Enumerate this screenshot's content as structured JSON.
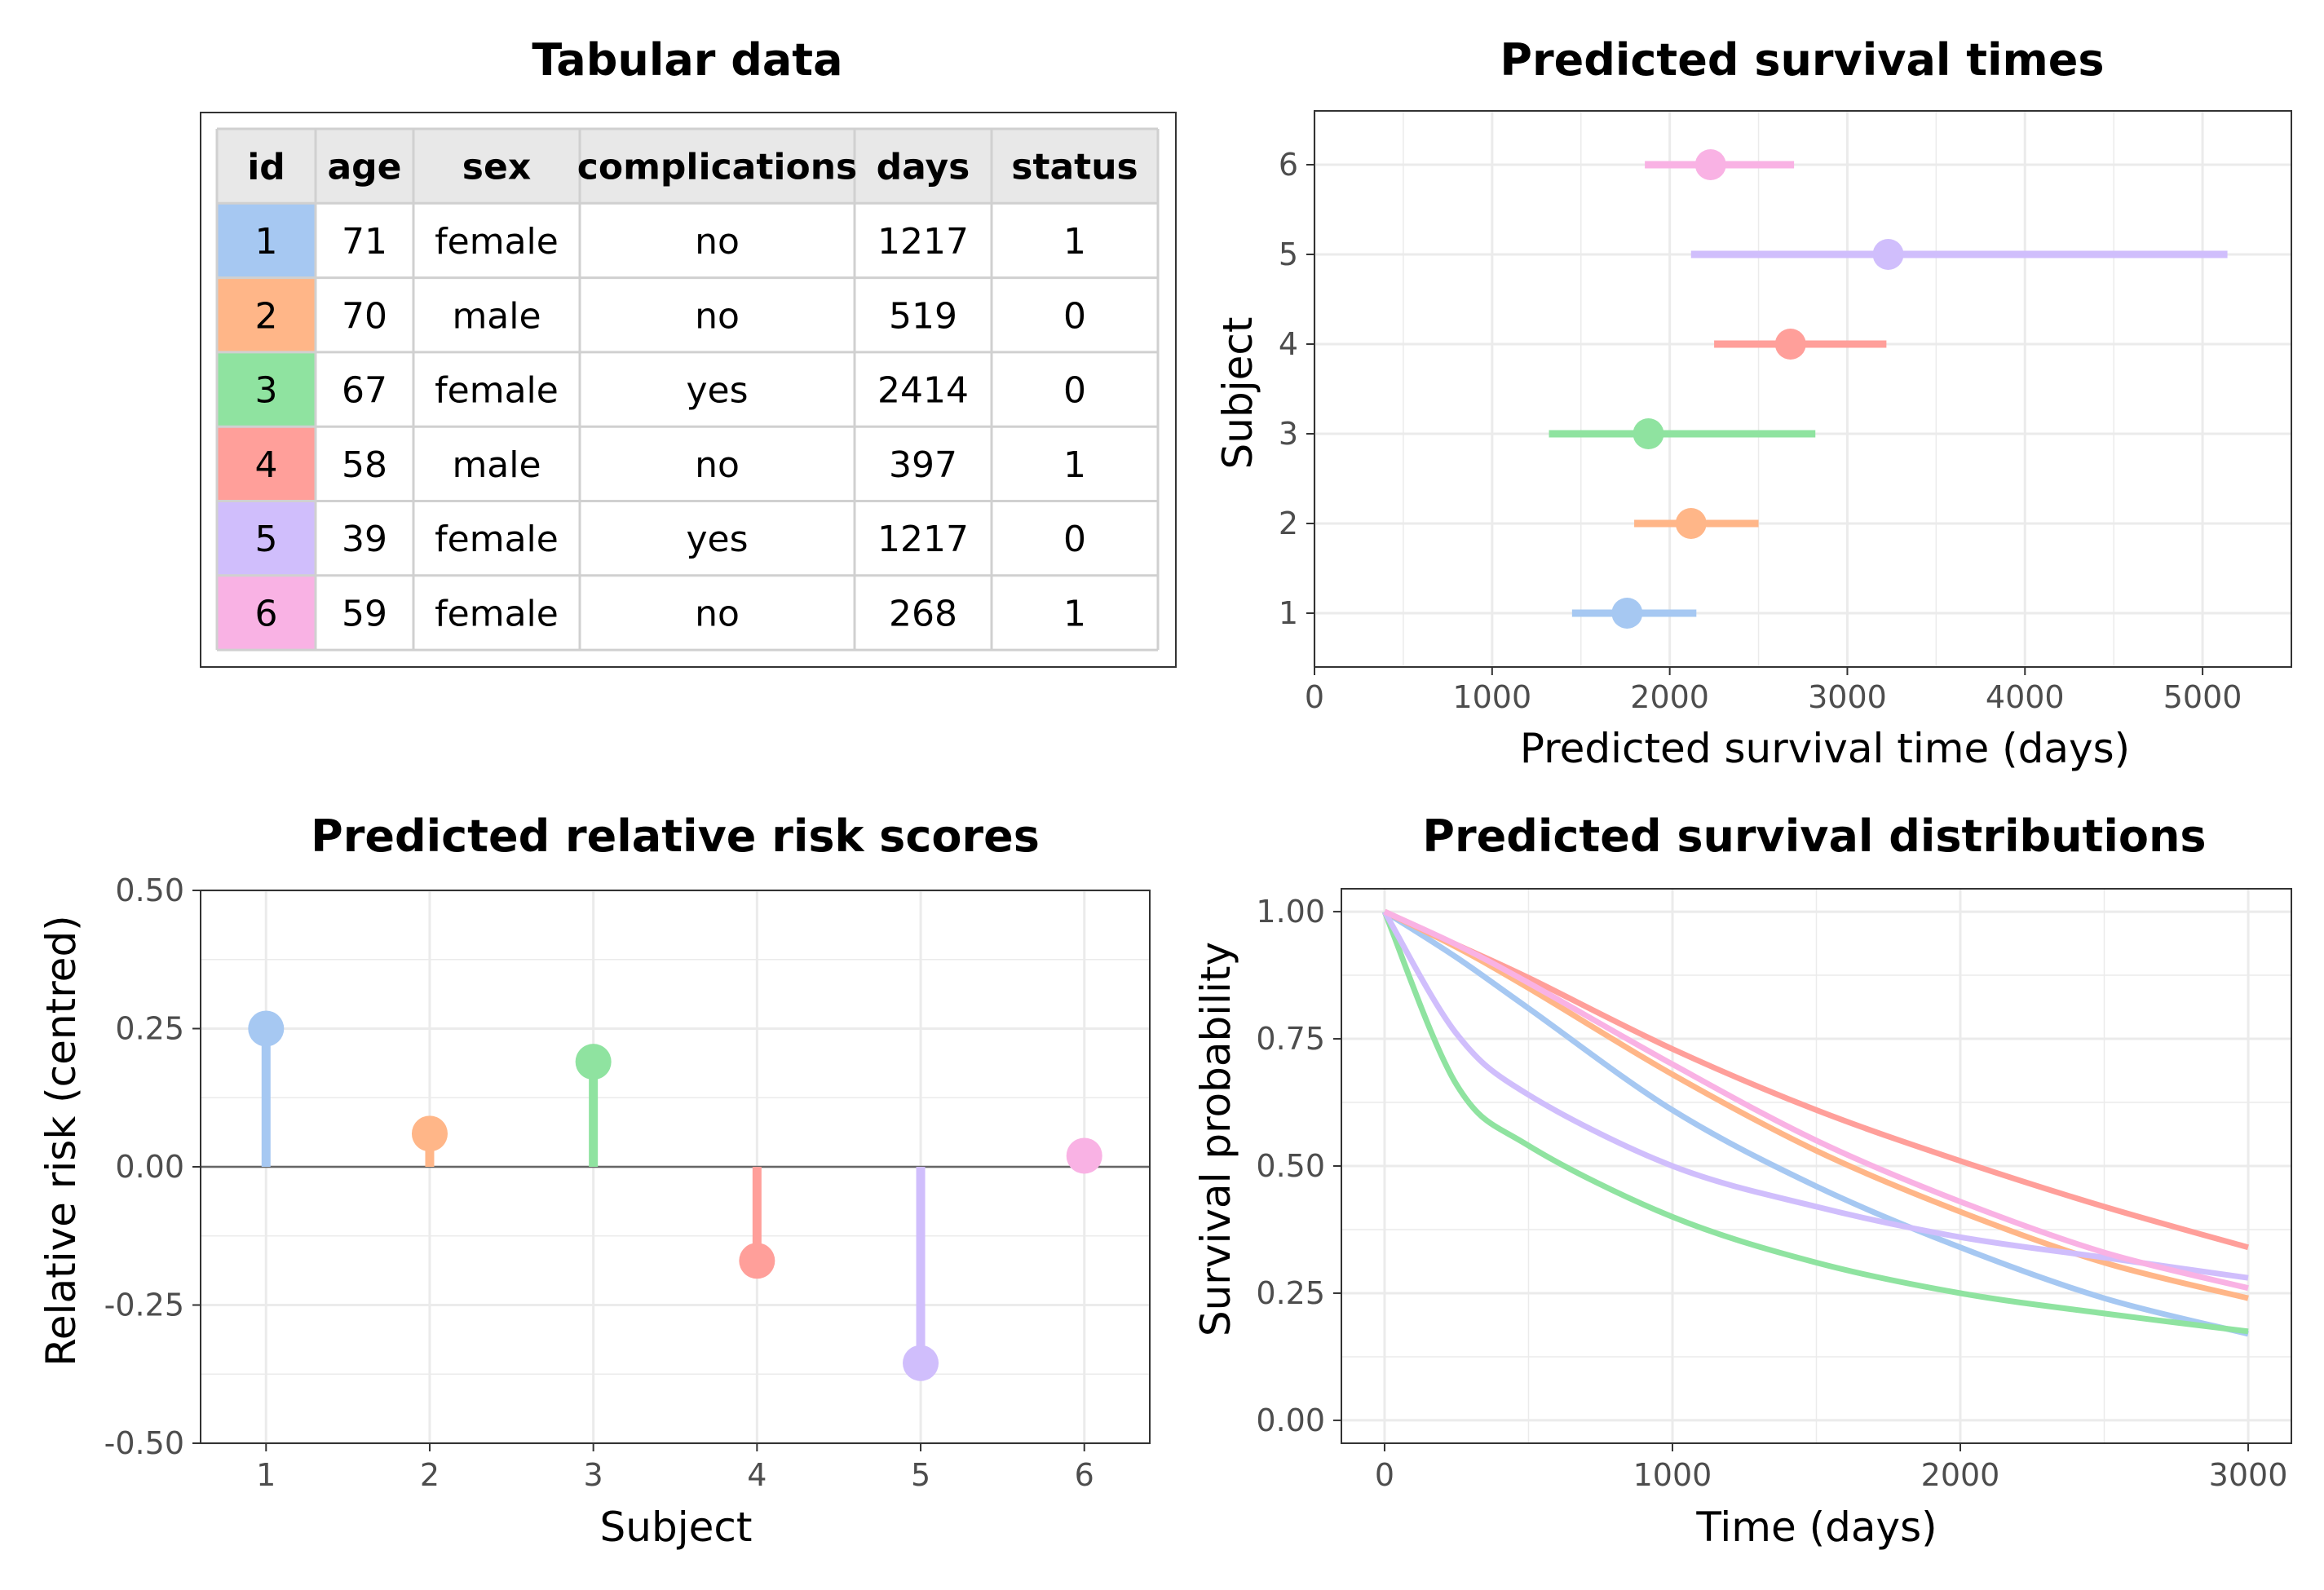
{
  "palette": [
    "#A6C8F2",
    "#FFB688",
    "#8FE3A0",
    "#FF9F9A",
    "#D0BEFC",
    "#F9B2E4"
  ],
  "chart_data": [
    {
      "type": "table",
      "title": "Tabular data",
      "columns": [
        "id",
        "age",
        "sex",
        "complications",
        "days",
        "status"
      ],
      "rows": [
        [
          "1",
          "71",
          "female",
          "no",
          "1217",
          "1"
        ],
        [
          "2",
          "70",
          "male",
          "no",
          "519",
          "0"
        ],
        [
          "3",
          "67",
          "female",
          "yes",
          "2414",
          "0"
        ],
        [
          "4",
          "58",
          "male",
          "no",
          "397",
          "1"
        ],
        [
          "5",
          "39",
          "female",
          "yes",
          "1217",
          "0"
        ],
        [
          "6",
          "59",
          "female",
          "no",
          "268",
          "1"
        ]
      ]
    },
    {
      "type": "scatter",
      "title": "Predicted survival times",
      "xlabel": "Predicted survival time (days)",
      "ylabel": "Subject",
      "xlim": [
        0,
        5500
      ],
      "ylim": [
        0.4,
        6.6
      ],
      "xticks": [
        "0",
        "1000",
        "2000",
        "3000",
        "4000",
        "5000"
      ],
      "yticks": [
        "1",
        "2",
        "3",
        "4",
        "5",
        "6"
      ],
      "grid": true,
      "points": [
        {
          "subject": 1,
          "estimate": 1760,
          "lower": 1450,
          "upper": 2150
        },
        {
          "subject": 2,
          "estimate": 2120,
          "lower": 1800,
          "upper": 2500
        },
        {
          "subject": 3,
          "estimate": 1880,
          "lower": 1320,
          "upper": 2820
        },
        {
          "subject": 4,
          "estimate": 2680,
          "lower": 2250,
          "upper": 3220
        },
        {
          "subject": 5,
          "estimate": 3230,
          "lower": 2120,
          "upper": 5140
        },
        {
          "subject": 6,
          "estimate": 2230,
          "lower": 1860,
          "upper": 2700
        }
      ]
    },
    {
      "type": "bar",
      "title": "Predicted relative risk scores",
      "xlabel": "Subject",
      "ylabel": "Relative risk (centred)",
      "categories": [
        "1",
        "2",
        "3",
        "4",
        "5",
        "6"
      ],
      "values": [
        0.25,
        0.06,
        0.19,
        -0.17,
        -0.355,
        0.02
      ],
      "ylim": [
        -0.5,
        0.5
      ],
      "yticks": [
        "-0.50",
        "-0.25",
        "0.00",
        "0.25",
        "0.50"
      ],
      "grid": true
    },
    {
      "type": "line",
      "title": "Predicted survival distributions",
      "xlabel": "Time (days)",
      "ylabel": "Survival probability",
      "xlim": [
        0,
        3000
      ],
      "ylim": [
        0,
        1
      ],
      "xticks": [
        "0",
        "1000",
        "2000",
        "3000"
      ],
      "yticks": [
        "0.00",
        "0.25",
        "0.50",
        "0.75",
        "1.00"
      ],
      "grid": true,
      "x": [
        0,
        250,
        500,
        1000,
        1500,
        2000,
        2500,
        3000
      ],
      "series": [
        {
          "values": [
            1.0,
            0.91,
            0.81,
            0.61,
            0.46,
            0.34,
            0.24,
            0.17
          ]
        },
        {
          "values": [
            1.0,
            0.93,
            0.85,
            0.68,
            0.53,
            0.41,
            0.31,
            0.24
          ]
        },
        {
          "values": [
            1.0,
            0.66,
            0.54,
            0.4,
            0.31,
            0.25,
            0.21,
            0.175
          ]
        },
        {
          "values": [
            1.0,
            0.935,
            0.87,
            0.73,
            0.61,
            0.51,
            0.42,
            0.34
          ]
        },
        {
          "values": [
            1.0,
            0.76,
            0.64,
            0.5,
            0.42,
            0.36,
            0.32,
            0.28
          ]
        },
        {
          "values": [
            1.0,
            0.935,
            0.86,
            0.7,
            0.55,
            0.43,
            0.33,
            0.26
          ]
        }
      ]
    }
  ]
}
